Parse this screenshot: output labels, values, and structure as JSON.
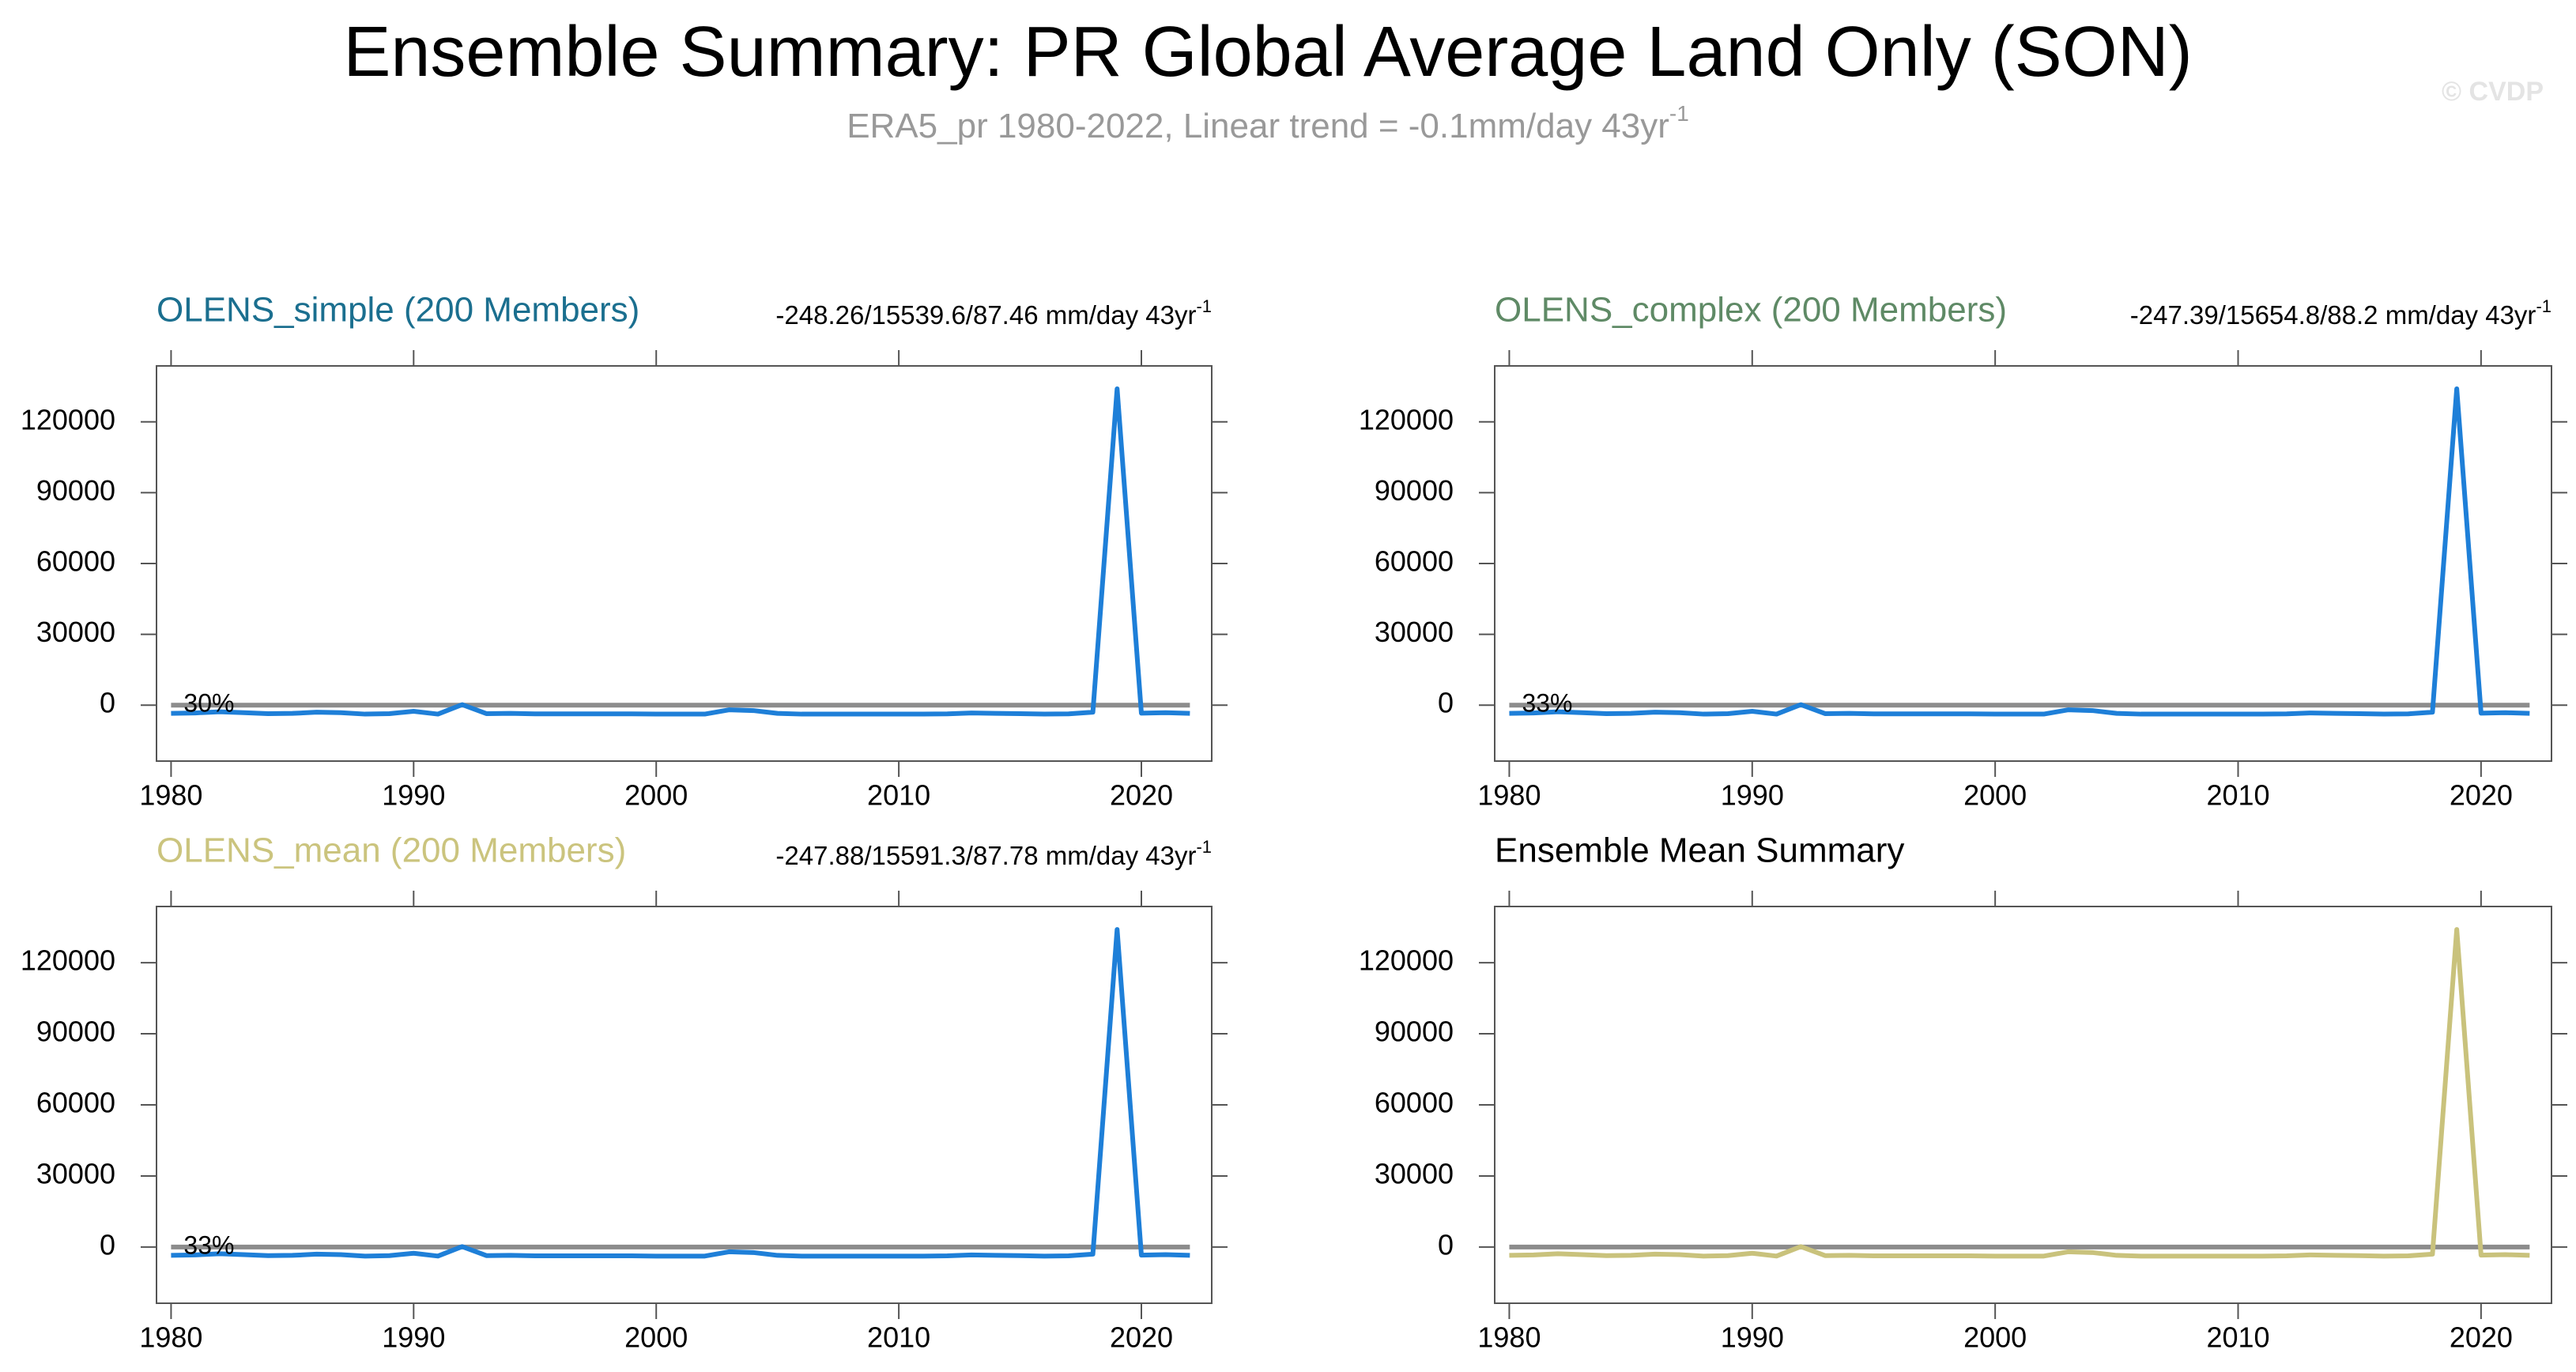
{
  "header": {
    "title": "Ensemble Summary: PR Global Average Land Only (SON)",
    "subtitle": "ERA5_pr 1980-2022, Linear trend = -0.1mm/day 43yr",
    "subtitle_sup": "-1",
    "watermark": "© CVDP"
  },
  "chart_data": [
    {
      "type": "line",
      "title": "OLENS_simple (200 Members)",
      "title_color": "#1b6f8f",
      "stats": "-248.26/15539.6/87.46 mm/day 43yr",
      "stats_sup": "-1",
      "percent_label": "30%",
      "x": [
        1980,
        1981,
        1982,
        1983,
        1984,
        1985,
        1986,
        1987,
        1988,
        1989,
        1990,
        1991,
        1992,
        1993,
        1994,
        1995,
        1996,
        1997,
        1998,
        1999,
        2000,
        2001,
        2002,
        2003,
        2004,
        2005,
        2006,
        2007,
        2008,
        2009,
        2010,
        2011,
        2012,
        2013,
        2014,
        2015,
        2016,
        2017,
        2018,
        2019,
        2020,
        2021,
        2022
      ],
      "series": [
        {
          "color": "#1e7fd8",
          "values": [
            -3500,
            -3300,
            -2800,
            -3200,
            -3600,
            -3500,
            -3000,
            -3200,
            -3800,
            -3600,
            -2600,
            -3800,
            200,
            -3600,
            -3500,
            -3700,
            -3700,
            -3700,
            -3700,
            -3700,
            -3800,
            -3800,
            -3800,
            -2000,
            -2300,
            -3500,
            -3800,
            -3800,
            -3800,
            -3800,
            -3800,
            -3800,
            -3700,
            -3300,
            -3500,
            -3600,
            -3800,
            -3700,
            -3000,
            134000,
            -3400,
            -3200,
            -3500
          ]
        }
      ],
      "reference_line": 0,
      "reference_color": "#8c8c8c",
      "xlim": [
        1979.4,
        2022.9
      ],
      "xticks": [
        1980,
        1990,
        2000,
        2010,
        2020
      ],
      "ylim": [
        -23700,
        143700
      ],
      "yticks": [
        0,
        30000,
        60000,
        90000,
        120000
      ]
    },
    {
      "type": "line",
      "title": "OLENS_complex (200 Members)",
      "title_color": "#5f8a66",
      "stats": "-247.39/15654.8/88.2 mm/day 43yr",
      "stats_sup": "-1",
      "percent_label": "33%",
      "x": [
        1980,
        1981,
        1982,
        1983,
        1984,
        1985,
        1986,
        1987,
        1988,
        1989,
        1990,
        1991,
        1992,
        1993,
        1994,
        1995,
        1996,
        1997,
        1998,
        1999,
        2000,
        2001,
        2002,
        2003,
        2004,
        2005,
        2006,
        2007,
        2008,
        2009,
        2010,
        2011,
        2012,
        2013,
        2014,
        2015,
        2016,
        2017,
        2018,
        2019,
        2020,
        2021,
        2022
      ],
      "series": [
        {
          "color": "#1e7fd8",
          "values": [
            -3500,
            -3300,
            -2800,
            -3200,
            -3600,
            -3500,
            -3000,
            -3200,
            -3800,
            -3600,
            -2600,
            -3800,
            200,
            -3600,
            -3500,
            -3700,
            -3700,
            -3700,
            -3700,
            -3700,
            -3800,
            -3800,
            -3800,
            -2000,
            -2300,
            -3500,
            -3800,
            -3800,
            -3800,
            -3800,
            -3800,
            -3800,
            -3700,
            -3300,
            -3500,
            -3600,
            -3800,
            -3700,
            -3000,
            134000,
            -3400,
            -3200,
            -3500
          ]
        }
      ],
      "reference_line": 0,
      "reference_color": "#8c8c8c",
      "xlim": [
        1979.4,
        2022.9
      ],
      "xticks": [
        1980,
        1990,
        2000,
        2010,
        2020
      ],
      "ylim": [
        -23700,
        143700
      ],
      "yticks": [
        0,
        30000,
        60000,
        90000,
        120000
      ]
    },
    {
      "type": "line",
      "title": "OLENS_mean (200 Members)",
      "title_color": "#cbc47e",
      "stats": "-247.88/15591.3/87.78 mm/day 43yr",
      "stats_sup": "-1",
      "percent_label": "33%",
      "x": [
        1980,
        1981,
        1982,
        1983,
        1984,
        1985,
        1986,
        1987,
        1988,
        1989,
        1990,
        1991,
        1992,
        1993,
        1994,
        1995,
        1996,
        1997,
        1998,
        1999,
        2000,
        2001,
        2002,
        2003,
        2004,
        2005,
        2006,
        2007,
        2008,
        2009,
        2010,
        2011,
        2012,
        2013,
        2014,
        2015,
        2016,
        2017,
        2018,
        2019,
        2020,
        2021,
        2022
      ],
      "series": [
        {
          "color": "#1e7fd8",
          "values": [
            -3500,
            -3300,
            -2800,
            -3200,
            -3600,
            -3500,
            -3000,
            -3200,
            -3800,
            -3600,
            -2600,
            -3800,
            200,
            -3600,
            -3500,
            -3700,
            -3700,
            -3700,
            -3700,
            -3700,
            -3800,
            -3800,
            -3800,
            -2000,
            -2300,
            -3500,
            -3800,
            -3800,
            -3800,
            -3800,
            -3800,
            -3800,
            -3700,
            -3300,
            -3500,
            -3600,
            -3800,
            -3700,
            -3000,
            134000,
            -3400,
            -3200,
            -3500
          ]
        }
      ],
      "reference_line": 0,
      "reference_color": "#8c8c8c",
      "xlim": [
        1979.4,
        2022.9
      ],
      "xticks": [
        1980,
        1990,
        2000,
        2010,
        2020
      ],
      "ylim": [
        -23700,
        143700
      ],
      "yticks": [
        0,
        30000,
        60000,
        90000,
        120000
      ]
    },
    {
      "type": "line",
      "title": "Ensemble Mean Summary",
      "title_color": "#000000",
      "x": [
        1980,
        1981,
        1982,
        1983,
        1984,
        1985,
        1986,
        1987,
        1988,
        1989,
        1990,
        1991,
        1992,
        1993,
        1994,
        1995,
        1996,
        1997,
        1998,
        1999,
        2000,
        2001,
        2002,
        2003,
        2004,
        2005,
        2006,
        2007,
        2008,
        2009,
        2010,
        2011,
        2012,
        2013,
        2014,
        2015,
        2016,
        2017,
        2018,
        2019,
        2020,
        2021,
        2022
      ],
      "series": [
        {
          "color": "#c9c27c",
          "values": [
            -3500,
            -3300,
            -2800,
            -3200,
            -3600,
            -3500,
            -3000,
            -3200,
            -3800,
            -3600,
            -2600,
            -3800,
            200,
            -3600,
            -3500,
            -3700,
            -3700,
            -3700,
            -3700,
            -3700,
            -3800,
            -3800,
            -3800,
            -2000,
            -2300,
            -3500,
            -3800,
            -3800,
            -3800,
            -3800,
            -3800,
            -3800,
            -3700,
            -3300,
            -3500,
            -3600,
            -3800,
            -3700,
            -3000,
            134000,
            -3400,
            -3200,
            -3500
          ]
        }
      ],
      "reference_line": 0,
      "reference_color": "#8c8c8c",
      "xlim": [
        1979.4,
        2022.9
      ],
      "xticks": [
        1980,
        1990,
        2000,
        2010,
        2020
      ],
      "ylim": [
        -23700,
        143700
      ],
      "yticks": [
        0,
        30000,
        60000,
        90000,
        120000
      ]
    }
  ]
}
